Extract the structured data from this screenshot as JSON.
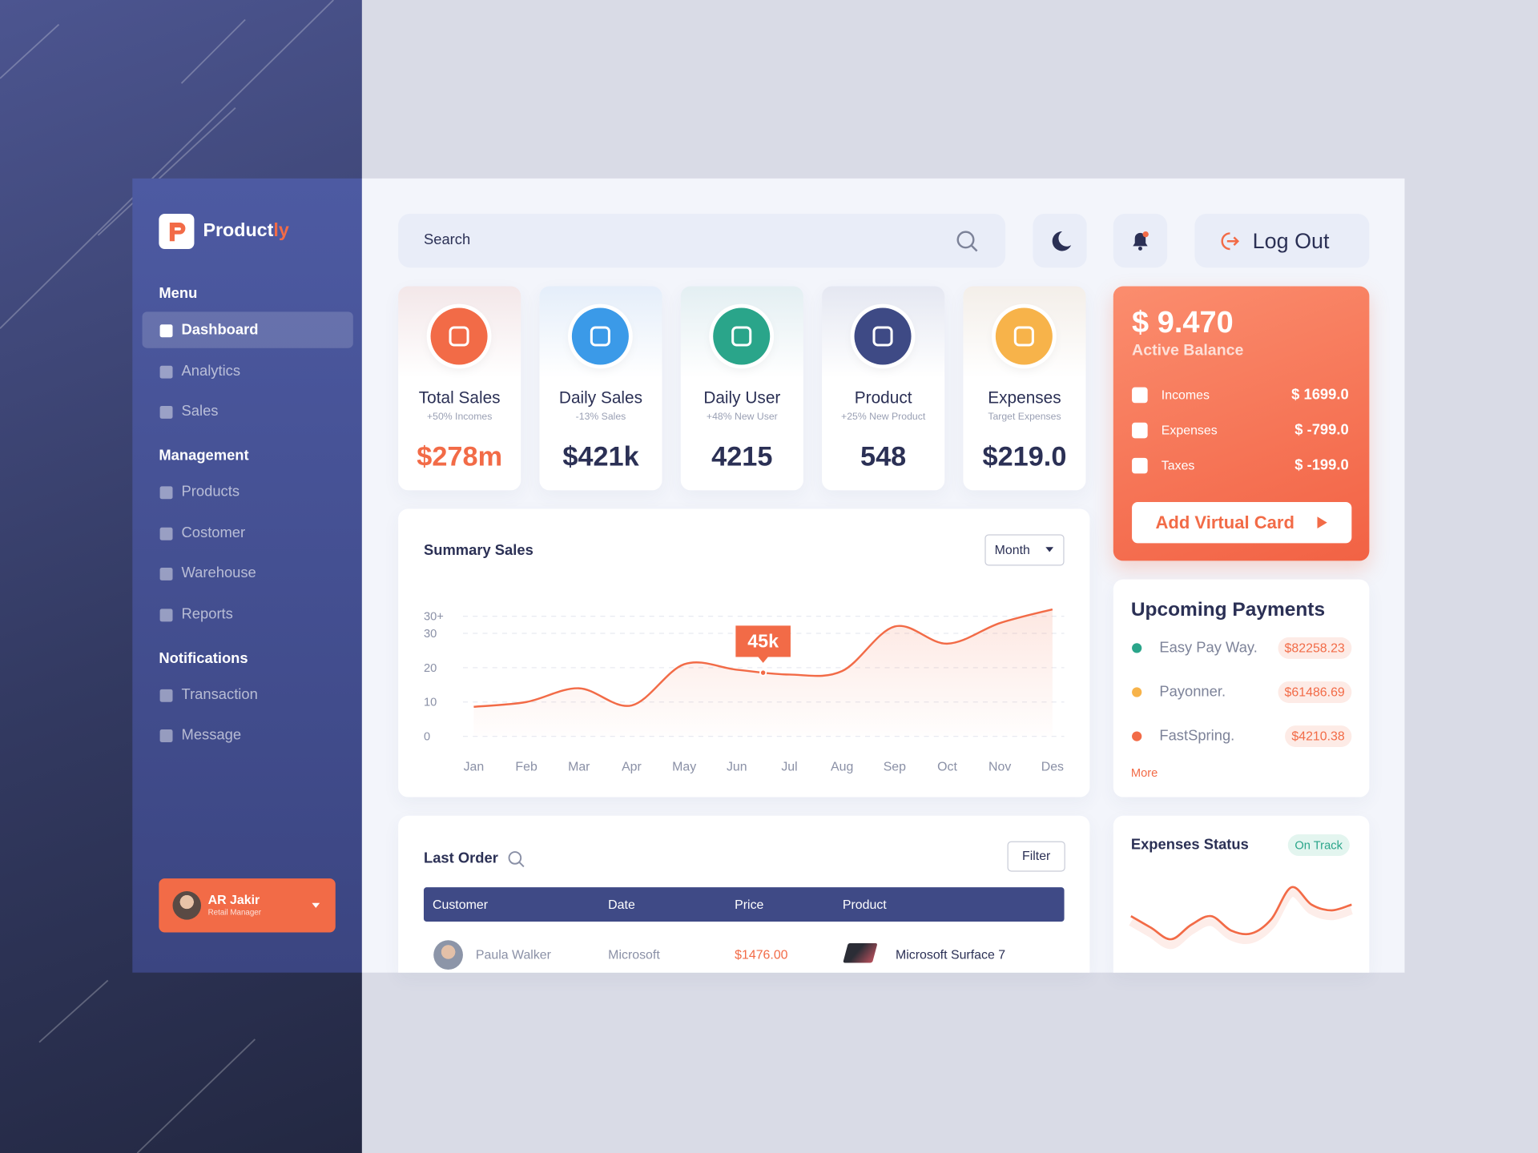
{
  "sidebar": {
    "brand": {
      "name": "Product",
      "accent": "ly"
    },
    "sections": [
      {
        "title": "Menu",
        "items": [
          "Dashboard",
          "Analytics",
          "Sales"
        ]
      },
      {
        "title": "Management",
        "items": [
          "Products",
          "Costomer",
          "Warehouse",
          "Reports"
        ]
      },
      {
        "title": "Notifications",
        "items": [
          "Transaction",
          "Message"
        ]
      }
    ],
    "user": {
      "name": "AR Jakir",
      "role": "Retail Manager"
    }
  },
  "topbar": {
    "search": "Search",
    "logout": "Log Out"
  },
  "stats": [
    {
      "title": "Total Sales",
      "note": "+50% Incomes",
      "value": "$278m"
    },
    {
      "title": "Daily Sales",
      "note": "-13% Sales",
      "value": "$421k"
    },
    {
      "title": "Daily User",
      "note": "+48% New User",
      "value": "4215"
    },
    {
      "title": "Product",
      "note": "+25% New Product",
      "value": "548"
    },
    {
      "title": "Expenses",
      "note": "Target Expenses",
      "value": "$219.0"
    }
  ],
  "balance": {
    "amount": "$ 9.470",
    "label": "Active Balance",
    "rows": [
      {
        "label": "Incomes",
        "amount": "$ 1699.0"
      },
      {
        "label": "Expenses",
        "amount": "$ -799.0"
      },
      {
        "label": "Taxes",
        "amount": "$ -199.0"
      }
    ],
    "button": "Add Virtual Card"
  },
  "chart_data": {
    "type": "line",
    "title": "Summary Sales",
    "period": "Month",
    "categories": [
      "Jan",
      "Feb",
      "Mar",
      "Apr",
      "May",
      "Jun",
      "Jul",
      "Aug",
      "Sep",
      "Oct",
      "Nov",
      "Des"
    ],
    "values": [
      8.6,
      10,
      14,
      9,
      21,
      19.4,
      18,
      19,
      32,
      27,
      33,
      37
    ],
    "ylim": [
      0,
      40
    ],
    "yticks": [
      0,
      10,
      20,
      30,
      {
        "value": 35,
        "label": "30+"
      }
    ],
    "grid": true,
    "color": "#f26b47",
    "annotation": "45k"
  },
  "payments": {
    "title": "Upcoming Payments",
    "rows": [
      {
        "name": "Easy Pay Way.",
        "amount": "$82258.23"
      },
      {
        "name": "Payonner.",
        "amount": "$61486.69"
      },
      {
        "name": "FastSpring.",
        "amount": "$4210.38"
      }
    ],
    "more": "More"
  },
  "orders": {
    "title": "Last Order",
    "filter": "Filter",
    "columns": [
      "Customer",
      "Date",
      "Price",
      "Product"
    ],
    "rows": [
      [
        "Paula Walker",
        "Microsoft",
        "$1476.00",
        "Microsoft Surface 7"
      ]
    ]
  },
  "expenses_status": {
    "title": "Expenses Status",
    "status": "On Track",
    "values": [
      5,
      3,
      1,
      3.5,
      5,
      2.5,
      2,
      4.5,
      10,
      7,
      6,
      7
    ]
  }
}
